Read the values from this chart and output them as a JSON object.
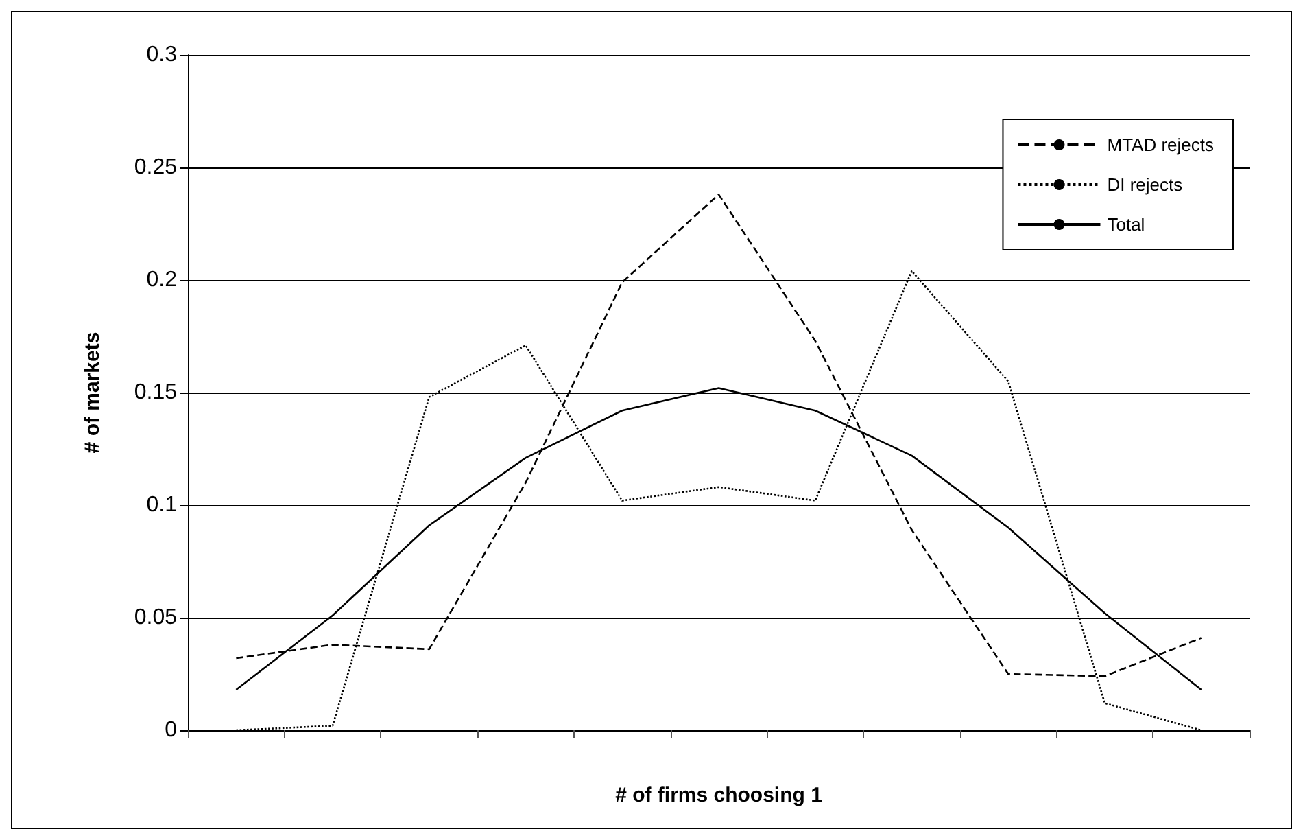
{
  "chart_data": {
    "type": "line",
    "xlabel": "# of firms choosing 1",
    "ylabel": "# of markets",
    "categories": [
      null,
      null,
      null,
      null,
      null,
      null,
      null,
      null,
      null,
      null,
      null
    ],
    "series": [
      {
        "name": "MTAD rejects",
        "color": "#000000",
        "line_style": "dashed",
        "values": [
          0.032,
          0.038,
          0.036,
          0.11,
          0.199,
          0.238,
          0.173,
          0.089,
          0.025,
          0.024,
          0.041
        ]
      },
      {
        "name": "DI rejects",
        "color": "#000000",
        "line_style": "dotted",
        "values": [
          0,
          0.002,
          0.148,
          0.171,
          0.102,
          0.108,
          0.102,
          0.204,
          0.155,
          0.012,
          0
        ]
      },
      {
        "name": "Total",
        "color": "#000000",
        "line_style": "solid",
        "values": [
          0.018,
          0.051,
          0.091,
          0.121,
          0.142,
          0.152,
          0.142,
          0.122,
          0.09,
          0.052,
          0.018
        ]
      }
    ],
    "ylim": [
      0,
      0.3
    ],
    "yticks": [
      0,
      0.05,
      0.1,
      0.15,
      0.2,
      0.25,
      0.3
    ],
    "grid": "y",
    "legend": "top right",
    "marker": "none"
  }
}
